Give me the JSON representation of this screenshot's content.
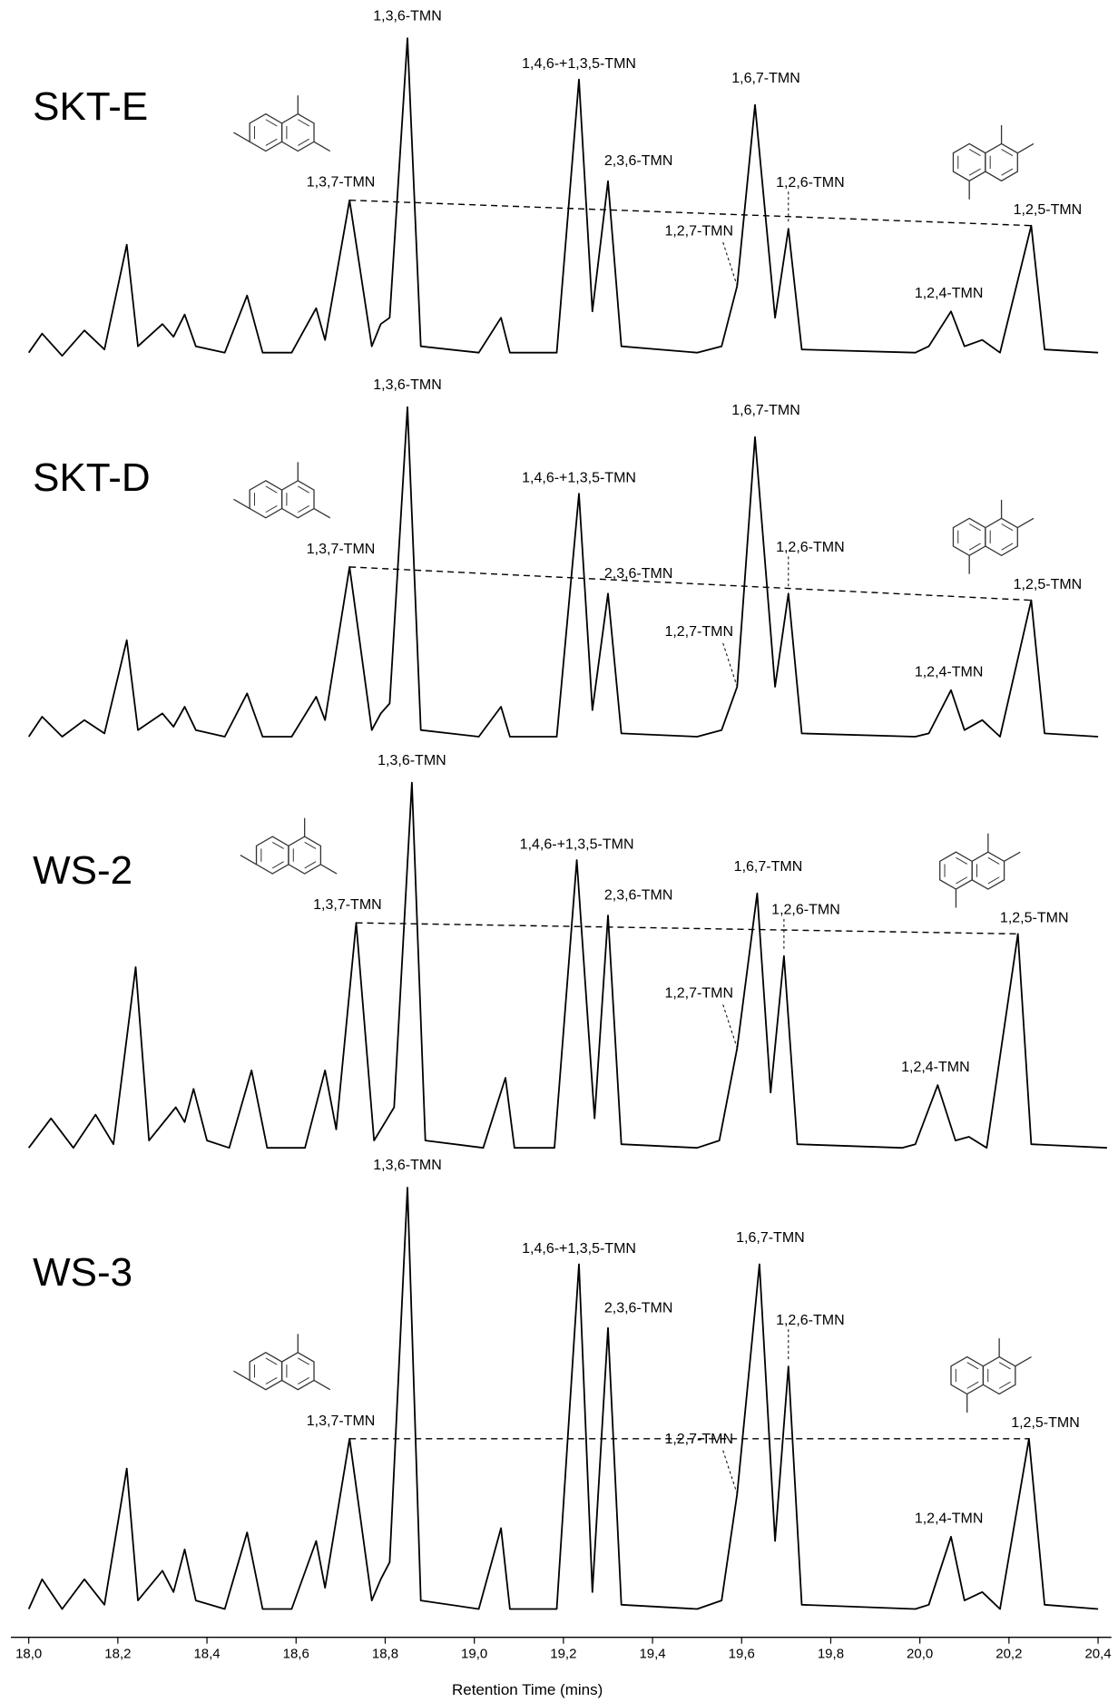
{
  "chart_data": [
    {
      "type": "line",
      "title": "SKT-E",
      "color": "#000000",
      "x": [
        18.0,
        18.03,
        18.075,
        18.125,
        18.17,
        18.22,
        18.245,
        18.3,
        18.325,
        18.35,
        18.375,
        18.44,
        18.49,
        18.525,
        18.59,
        18.645,
        18.665,
        18.72,
        18.77,
        18.79,
        18.81,
        18.85,
        18.88,
        19.01,
        19.06,
        19.08,
        19.185,
        19.235,
        19.265,
        19.3,
        19.33,
        19.5,
        19.555,
        19.59,
        19.63,
        19.675,
        19.705,
        19.735,
        19.99,
        20.02,
        20.07,
        20.1,
        20.14,
        20.18,
        20.25,
        20.28,
        20.4
      ],
      "values": [
        1,
        7,
        0,
        8,
        2,
        35,
        3,
        10,
        6,
        13,
        3,
        1,
        19,
        1,
        1,
        15,
        5,
        49,
        3,
        10,
        12,
        100,
        3,
        1,
        12,
        1,
        1,
        87,
        14,
        55,
        3,
        1,
        3,
        22,
        79,
        12,
        40,
        2,
        1,
        3,
        14,
        3,
        5,
        1,
        41,
        2,
        1
      ],
      "xlim": [
        17.96,
        20.43
      ],
      "ylim": [
        0,
        100
      ],
      "annotations": [
        "1,3,6-TMN",
        "1,4,6-+1,3,5-TMN",
        "1,6,7-TMN",
        "2,3,6-TMN",
        "1,3,7-TMN",
        "1,2,6-TMN",
        "1,2,7-TMN",
        "1,2,5-TMN",
        "1,2,4-TMN"
      ]
    },
    {
      "type": "line",
      "title": "SKT-D",
      "color": "#000000",
      "x": [
        18.0,
        18.03,
        18.075,
        18.125,
        18.17,
        18.22,
        18.245,
        18.3,
        18.325,
        18.35,
        18.375,
        18.44,
        18.49,
        18.525,
        18.59,
        18.645,
        18.665,
        18.72,
        18.77,
        18.79,
        18.81,
        18.85,
        18.88,
        19.01,
        19.06,
        19.08,
        19.185,
        19.235,
        19.265,
        19.3,
        19.33,
        19.5,
        19.555,
        19.59,
        19.63,
        19.675,
        19.705,
        19.735,
        19.99,
        20.02,
        20.07,
        20.1,
        20.14,
        20.18,
        20.25,
        20.28,
        20.4
      ],
      "values": [
        1,
        7,
        1,
        6,
        2,
        30,
        3,
        8,
        4,
        10,
        3,
        1,
        14,
        1,
        1,
        13,
        6,
        52,
        3,
        8,
        11,
        100,
        3,
        1,
        10,
        1,
        1,
        74,
        9,
        44,
        2,
        1,
        3,
        16,
        91,
        16,
        44,
        2,
        1,
        2,
        15,
        3,
        6,
        1,
        42,
        2,
        1
      ],
      "xlim": [
        17.96,
        20.43
      ],
      "ylim": [
        0,
        100
      ],
      "annotations": [
        "1,3,6-TMN",
        "1,4,6-+1,3,5-TMN",
        "1,6,7-TMN",
        "2,3,6-TMN",
        "1,3,7-TMN",
        "1,2,6-TMN",
        "1,2,7-TMN",
        "1,2,5-TMN",
        "1,2,4-TMN"
      ]
    },
    {
      "type": "line",
      "title": "WS-2",
      "color": "#000000",
      "x": [
        18.0,
        18.05,
        18.1,
        18.15,
        18.19,
        18.24,
        18.27,
        18.33,
        18.35,
        18.37,
        18.4,
        18.45,
        18.5,
        18.535,
        18.62,
        18.665,
        18.69,
        18.735,
        18.775,
        18.8,
        18.82,
        18.86,
        18.89,
        19.02,
        19.07,
        19.09,
        19.18,
        19.23,
        19.27,
        19.3,
        19.33,
        19.5,
        19.55,
        19.59,
        19.635,
        19.665,
        19.695,
        19.725,
        19.96,
        19.99,
        20.04,
        20.08,
        20.11,
        20.15,
        20.22,
        20.25,
        20.42
      ],
      "values": [
        1,
        9,
        1,
        10,
        2,
        50,
        3,
        12,
        8,
        17,
        3,
        1,
        22,
        1,
        1,
        22,
        6,
        62,
        3,
        8,
        12,
        100,
        3,
        1,
        20,
        1,
        1,
        79,
        9,
        64,
        2,
        1,
        3,
        28,
        70,
        16,
        53,
        2,
        1,
        2,
        18,
        3,
        4,
        1,
        59,
        2,
        1
      ],
      "xlim": [
        17.96,
        20.43
      ],
      "ylim": [
        0,
        100
      ],
      "annotations": [
        "1,3,6-TMN",
        "1,4,6-+1,3,5-TMN",
        "1,6,7-TMN",
        "2,3,6-TMN",
        "1,3,7-TMN",
        "1,2,6-TMN",
        "1,2,7-TMN",
        "1,2,5-TMN",
        "1,2,4-TMN"
      ]
    },
    {
      "type": "line",
      "title": "WS-3",
      "color": "#000000",
      "x": [
        18.0,
        18.03,
        18.075,
        18.125,
        18.17,
        18.22,
        18.245,
        18.3,
        18.325,
        18.35,
        18.375,
        18.44,
        18.49,
        18.525,
        18.59,
        18.645,
        18.665,
        18.72,
        18.77,
        18.79,
        18.81,
        18.85,
        18.88,
        19.01,
        19.06,
        19.08,
        19.185,
        19.235,
        19.265,
        19.3,
        19.33,
        19.5,
        19.555,
        19.59,
        19.64,
        19.675,
        19.705,
        19.735,
        19.99,
        20.02,
        20.07,
        20.1,
        20.14,
        20.18,
        20.245,
        20.28,
        20.4
      ],
      "values": [
        1,
        8,
        1,
        8,
        2,
        34,
        3,
        10,
        5,
        15,
        3,
        1,
        19,
        1,
        1,
        17,
        6,
        41,
        3,
        8,
        12,
        100,
        3,
        1,
        20,
        1,
        1,
        82,
        5,
        67,
        2,
        1,
        3,
        28,
        82,
        17,
        58,
        2,
        1,
        2,
        18,
        3,
        5,
        1,
        41,
        2,
        1
      ],
      "xlim": [
        17.96,
        20.43
      ],
      "ylim": [
        0,
        100
      ],
      "annotations": [
        "1,3,6-TMN",
        "1,4,6-+1,3,5-TMN",
        "1,6,7-TMN",
        "2,3,6-TMN",
        "1,3,7-TMN",
        "1,2,6-TMN",
        "1,2,7-TMN",
        "1,2,5-TMN",
        "1,2,4-TMN"
      ],
      "xticks": [
        {
          "value": 18.0,
          "label": "18,0"
        },
        {
          "value": 18.2,
          "label": "18,2"
        },
        {
          "value": 18.4,
          "label": "18,4"
        },
        {
          "value": 18.6,
          "label": "18,6"
        },
        {
          "value": 18.8,
          "label": "18,8"
        },
        {
          "value": 19.0,
          "label": "19,0"
        },
        {
          "value": 19.2,
          "label": "19,2"
        },
        {
          "value": 19.4,
          "label": "19,4"
        },
        {
          "value": 19.6,
          "label": "19,6"
        },
        {
          "value": 19.8,
          "label": "19,8"
        },
        {
          "value": 20.0,
          "label": "20,0"
        },
        {
          "value": 20.2,
          "label": "20,2"
        },
        {
          "value": 20.4,
          "label": "20,4"
        }
      ],
      "xlabel": "Retention Time (mins)"
    }
  ]
}
